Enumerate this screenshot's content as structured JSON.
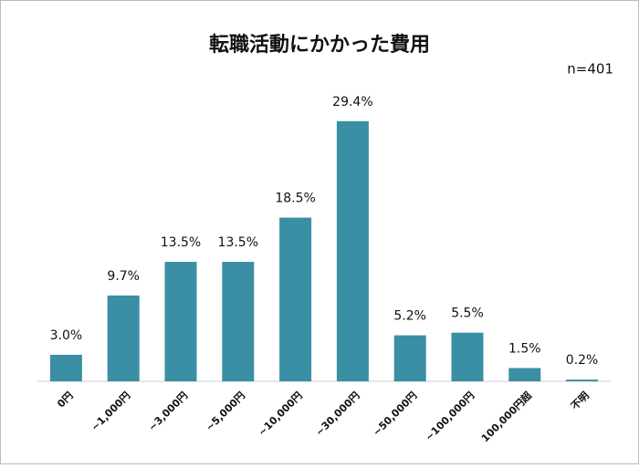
{
  "chart_data": {
    "type": "bar",
    "title": "転職活動にかかった費用",
    "annotation": "n=401",
    "categories": [
      "0円",
      "~1,000円",
      "~3,000円",
      "~5,000円",
      "~10,000円",
      "~30,000円",
      "~50,000円",
      "~100,000円",
      "100,000円超",
      "不明"
    ],
    "values": [
      3.0,
      9.7,
      13.5,
      13.5,
      18.5,
      29.4,
      5.2,
      5.5,
      1.5,
      0.2
    ],
    "value_labels": [
      "3.0%",
      "9.7%",
      "13.5%",
      "13.5%",
      "18.5%",
      "29.4%",
      "5.2%",
      "5.5%",
      "1.5%",
      "0.2%"
    ],
    "color": "#3a8fa5",
    "ylim": [
      0,
      30
    ]
  }
}
